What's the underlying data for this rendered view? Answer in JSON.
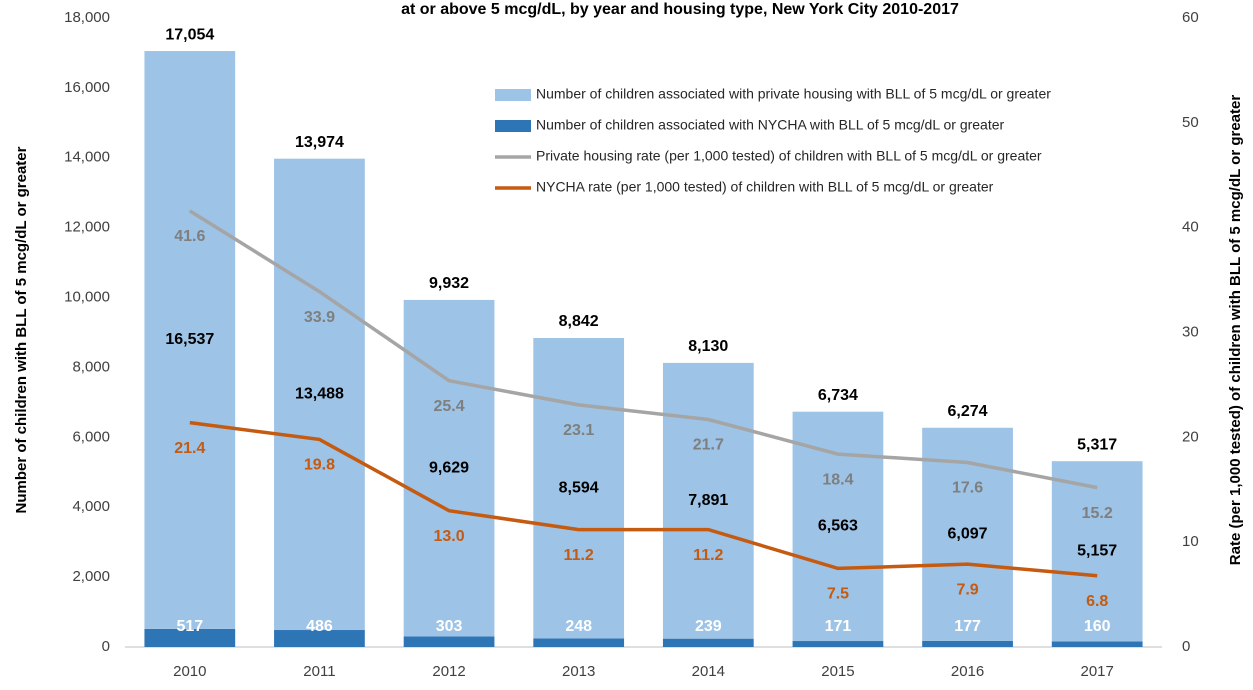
{
  "chart_data": {
    "type": "bar",
    "title": "at or above 5 mcg/dL, by year and housing type, New York City 2010-2017",
    "ylabel": "Number of children with BLL of 5 mcg/dL or greater",
    "y2label": "Rate (per 1,000 tested) of children with BLL of 5 mcg/dL or greater",
    "categories": [
      "2010",
      "2011",
      "2012",
      "2013",
      "2014",
      "2015",
      "2016",
      "2017"
    ],
    "stacked": true,
    "grid": false,
    "ylim": [
      0,
      18000
    ],
    "yticks": [
      0,
      {
        "value": 2000,
        "label": "2,000"
      },
      {
        "value": 4000,
        "label": "4,000"
      },
      {
        "value": 6000,
        "label": "6,000"
      },
      {
        "value": 8000,
        "label": "8,000"
      },
      {
        "value": 10000,
        "label": "10,000"
      },
      {
        "value": 12000,
        "label": "12,000"
      },
      {
        "value": 14000,
        "label": "14,000"
      },
      {
        "value": 16000,
        "label": "16,000"
      },
      {
        "value": 18000,
        "label": "18,000"
      }
    ],
    "y2lim": [
      0,
      60
    ],
    "y2ticks": [
      0,
      10,
      20,
      30,
      40,
      50,
      60
    ],
    "totals": [
      17054,
      13974,
      9932,
      8842,
      8130,
      6734,
      6274,
      5317
    ],
    "total_labels": [
      "17,054",
      "13,974",
      "9,932",
      "8,842",
      "8,130",
      "6,734",
      "6,274",
      "5,317"
    ],
    "series": [
      {
        "name": "Number of children associated with NYCHA with BLL of 5 mcg/dL or greater",
        "type": "bar",
        "color": "#2e75b6",
        "values": [
          517,
          486,
          303,
          248,
          239,
          171,
          177,
          160
        ],
        "value_labels": [
          "517",
          "486",
          "303",
          "248",
          "239",
          "171",
          "177",
          "160"
        ]
      },
      {
        "name": "Number of children associated with private housing with BLL of 5 mcg/dL or greater",
        "type": "bar",
        "color": "#9dc3e6",
        "values": [
          16537,
          13488,
          9629,
          8594,
          7891,
          6563,
          6097,
          5157
        ],
        "value_labels": [
          "16,537",
          "13,488",
          "9,629",
          "8,594",
          "7,891",
          "6,563",
          "6,097",
          "5,157"
        ]
      },
      {
        "name": "Private housing rate (per 1,000 tested) of children with BLL of 5 mcg/dL or greater",
        "type": "line",
        "axis": "y2",
        "color": "#a5a5a5",
        "values": [
          41.6,
          33.9,
          25.4,
          23.1,
          21.7,
          18.4,
          17.6,
          15.2
        ],
        "value_labels": [
          "41.6",
          "33.9",
          "25.4",
          "23.1",
          "21.7",
          "18.4",
          "17.6",
          "15.2"
        ]
      },
      {
        "name": "NYCHA rate (per 1,000 tested) of children with BLL of 5 mcg/dL or greater",
        "type": "line",
        "axis": "y2",
        "color": "#c55a11",
        "values": [
          21.4,
          19.8,
          13.0,
          11.2,
          11.2,
          7.5,
          7.9,
          6.8
        ],
        "value_labels": [
          "21.4",
          "19.8",
          "13.0",
          "11.2",
          "11.2",
          "7.5",
          "7.9",
          "6.8"
        ]
      }
    ]
  }
}
